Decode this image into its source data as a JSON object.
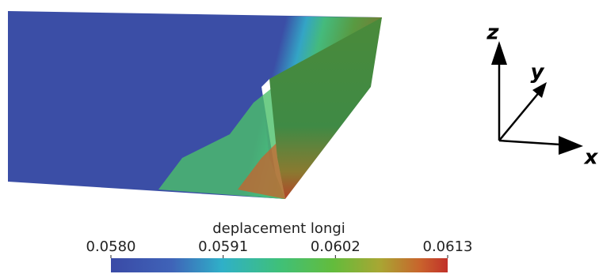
{
  "colorbar": {
    "title": "deplacement longi",
    "lim": [
      0.058,
      0.0613
    ],
    "ticks": [
      {
        "value": 0.058,
        "label": "0.0580"
      },
      {
        "value": 0.0591,
        "label": "0.0591"
      },
      {
        "value": 0.0602,
        "label": "0.0602"
      },
      {
        "value": 0.0613,
        "label": "0.0613"
      }
    ]
  },
  "axes": {
    "z": "z",
    "y": "y",
    "x": "x"
  }
}
